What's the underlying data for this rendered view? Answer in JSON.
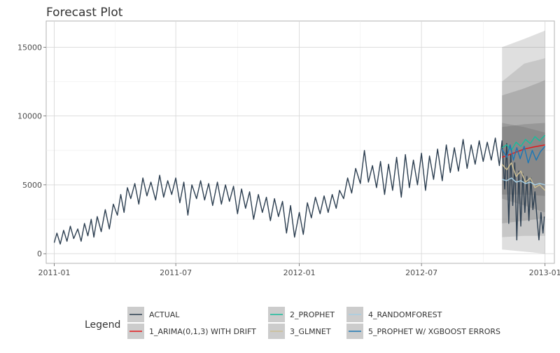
{
  "chart_data": {
    "type": "line",
    "title": "Forecast Plot",
    "xlabel": "",
    "ylabel": "",
    "x_range": [
      "2010-12-20",
      "2013-01-15"
    ],
    "ylim": [
      -700,
      16900
    ],
    "x_ticks": [
      {
        "date": "2011-01-01",
        "label": "2011-01"
      },
      {
        "date": "2011-07-01",
        "label": "2011-07"
      },
      {
        "date": "2012-01-01",
        "label": "2012-01"
      },
      {
        "date": "2012-07-01",
        "label": "2012-07"
      },
      {
        "date": "2013-01-01",
        "label": "2013-01"
      }
    ],
    "y_ticks": [
      0,
      5000,
      10000,
      15000
    ],
    "grid": true,
    "legend": {
      "title": "Legend",
      "position": "bottom",
      "entries": [
        {
          "label": "ACTUAL",
          "color": "#2c3e50"
        },
        {
          "label": "1_ARIMA(0,1,3) WITH DRIFT",
          "color": "#e31a1c"
        },
        {
          "label": "2_PROPHET",
          "color": "#18bc9c"
        },
        {
          "label": "3_GLMNET",
          "color": "#ccbe93"
        },
        {
          "label": "4_RANDOMFOREST",
          "color": "#a6cee3"
        },
        {
          "label": "5_PROPHET W/ XGBOOST ERRORS",
          "color": "#1f78b4"
        }
      ]
    },
    "colors": {
      "actual": "#2c3e50",
      "arima": "#e31a1c",
      "prophet": "#18bc9c",
      "glmnet": "#ccbe93",
      "randomforest": "#a6cee3",
      "xgb": "#1f78b4",
      "interval": "#4d4d4d"
    },
    "actual_series": {
      "name": "ACTUAL",
      "points": [
        [
          "2011-01-01",
          800
        ],
        [
          "2011-01-05",
          1500
        ],
        [
          "2011-01-10",
          700
        ],
        [
          "2011-01-15",
          1700
        ],
        [
          "2011-01-20",
          900
        ],
        [
          "2011-01-25",
          2000
        ],
        [
          "2011-01-30",
          1100
        ],
        [
          "2011-02-05",
          1800
        ],
        [
          "2011-02-10",
          900
        ],
        [
          "2011-02-15",
          2200
        ],
        [
          "2011-02-20",
          1300
        ],
        [
          "2011-02-25",
          2500
        ],
        [
          "2011-03-01",
          1200
        ],
        [
          "2011-03-06",
          2700
        ],
        [
          "2011-03-12",
          1600
        ],
        [
          "2011-03-18",
          3200
        ],
        [
          "2011-03-24",
          1800
        ],
        [
          "2011-03-30",
          3600
        ],
        [
          "2011-04-05",
          2800
        ],
        [
          "2011-04-10",
          4300
        ],
        [
          "2011-04-15",
          3000
        ],
        [
          "2011-04-20",
          4800
        ],
        [
          "2011-04-25",
          4000
        ],
        [
          "2011-05-01",
          5100
        ],
        [
          "2011-05-07",
          3600
        ],
        [
          "2011-05-13",
          5500
        ],
        [
          "2011-05-19",
          4200
        ],
        [
          "2011-05-25",
          5200
        ],
        [
          "2011-06-01",
          3900
        ],
        [
          "2011-06-07",
          5700
        ],
        [
          "2011-06-13",
          4100
        ],
        [
          "2011-06-19",
          5300
        ],
        [
          "2011-06-25",
          4300
        ],
        [
          "2011-07-01",
          5500
        ],
        [
          "2011-07-07",
          3700
        ],
        [
          "2011-07-13",
          5200
        ],
        [
          "2011-07-19",
          2800
        ],
        [
          "2011-07-25",
          5000
        ],
        [
          "2011-08-01",
          4000
        ],
        [
          "2011-08-07",
          5300
        ],
        [
          "2011-08-13",
          3900
        ],
        [
          "2011-08-19",
          5100
        ],
        [
          "2011-08-25",
          3500
        ],
        [
          "2011-09-01",
          5200
        ],
        [
          "2011-09-07",
          3600
        ],
        [
          "2011-09-13",
          5000
        ],
        [
          "2011-09-19",
          3800
        ],
        [
          "2011-09-25",
          4900
        ],
        [
          "2011-10-01",
          2900
        ],
        [
          "2011-10-07",
          4700
        ],
        [
          "2011-10-13",
          3300
        ],
        [
          "2011-10-19",
          4500
        ],
        [
          "2011-10-25",
          2500
        ],
        [
          "2011-11-01",
          4300
        ],
        [
          "2011-11-07",
          3000
        ],
        [
          "2011-11-13",
          4100
        ],
        [
          "2011-11-19",
          2400
        ],
        [
          "2011-11-25",
          4000
        ],
        [
          "2011-12-01",
          2700
        ],
        [
          "2011-12-07",
          3800
        ],
        [
          "2011-12-13",
          1500
        ],
        [
          "2011-12-19",
          3500
        ],
        [
          "2011-12-25",
          1200
        ],
        [
          "2012-01-01",
          3000
        ],
        [
          "2012-01-07",
          1400
        ],
        [
          "2012-01-13",
          3700
        ],
        [
          "2012-01-19",
          2600
        ],
        [
          "2012-01-25",
          4100
        ],
        [
          "2012-02-01",
          2900
        ],
        [
          "2012-02-07",
          4200
        ],
        [
          "2012-02-13",
          3000
        ],
        [
          "2012-02-19",
          4300
        ],
        [
          "2012-02-25",
          3300
        ],
        [
          "2012-03-01",
          4600
        ],
        [
          "2012-03-07",
          4000
        ],
        [
          "2012-03-13",
          5500
        ],
        [
          "2012-03-19",
          4400
        ],
        [
          "2012-03-25",
          6200
        ],
        [
          "2012-04-01",
          5100
        ],
        [
          "2012-04-07",
          7500
        ],
        [
          "2012-04-13",
          5200
        ],
        [
          "2012-04-19",
          6400
        ],
        [
          "2012-04-25",
          4800
        ],
        [
          "2012-05-01",
          6700
        ],
        [
          "2012-05-07",
          4300
        ],
        [
          "2012-05-13",
          6500
        ],
        [
          "2012-05-19",
          4600
        ],
        [
          "2012-05-25",
          7000
        ],
        [
          "2012-06-01",
          4100
        ],
        [
          "2012-06-07",
          7200
        ],
        [
          "2012-06-13",
          4800
        ],
        [
          "2012-06-19",
          6800
        ],
        [
          "2012-06-25",
          5000
        ],
        [
          "2012-07-01",
          7300
        ],
        [
          "2012-07-07",
          4600
        ],
        [
          "2012-07-13",
          7100
        ],
        [
          "2012-07-19",
          5400
        ],
        [
          "2012-07-25",
          7600
        ],
        [
          "2012-08-01",
          5300
        ],
        [
          "2012-08-07",
          7900
        ],
        [
          "2012-08-13",
          5900
        ],
        [
          "2012-08-19",
          7700
        ],
        [
          "2012-08-25",
          6000
        ],
        [
          "2012-09-01",
          8300
        ],
        [
          "2012-09-07",
          6200
        ],
        [
          "2012-09-13",
          7900
        ],
        [
          "2012-09-19",
          6500
        ],
        [
          "2012-09-25",
          8200
        ],
        [
          "2012-10-01",
          6700
        ],
        [
          "2012-10-07",
          8100
        ],
        [
          "2012-10-13",
          6800
        ],
        [
          "2012-10-19",
          8400
        ],
        [
          "2012-10-25",
          6400
        ],
        [
          "2012-10-29",
          8200
        ],
        [
          "2012-11-02",
          4700
        ],
        [
          "2012-11-05",
          8000
        ],
        [
          "2012-11-08",
          2200
        ],
        [
          "2012-11-11",
          7200
        ],
        [
          "2012-11-14",
          3500
        ],
        [
          "2012-11-17",
          6600
        ],
        [
          "2012-11-20",
          1000
        ],
        [
          "2012-11-23",
          6000
        ],
        [
          "2012-11-26",
          2000
        ],
        [
          "2012-11-29",
          5800
        ],
        [
          "2012-12-02",
          3000
        ],
        [
          "2012-12-05",
          5600
        ],
        [
          "2012-12-08",
          2400
        ],
        [
          "2012-12-11",
          5500
        ],
        [
          "2012-12-14",
          3200
        ],
        [
          "2012-12-17",
          4500
        ],
        [
          "2012-12-20",
          2600
        ],
        [
          "2012-12-23",
          1000
        ],
        [
          "2012-12-26",
          3000
        ],
        [
          "2012-12-29",
          1500
        ],
        [
          "2012-12-31",
          2700
        ]
      ]
    },
    "forecast_start": "2012-10-29",
    "forecast_end": "2013-01-01",
    "forecast_series": [
      {
        "name": "1_ARIMA(0,1,3) WITH DRIFT",
        "color": "#e31a1c",
        "points": [
          [
            "2012-10-29",
            7000
          ],
          [
            "2012-11-15",
            7300
          ],
          [
            "2012-12-01",
            7600
          ],
          [
            "2012-12-15",
            7750
          ],
          [
            "2013-01-01",
            7900
          ]
        ]
      },
      {
        "name": "2_PROPHET",
        "color": "#18bc9c",
        "points": [
          [
            "2012-10-29",
            7700
          ],
          [
            "2012-11-05",
            7900
          ],
          [
            "2012-11-12",
            7500
          ],
          [
            "2012-11-19",
            8100
          ],
          [
            "2012-11-26",
            7800
          ],
          [
            "2012-12-03",
            8300
          ],
          [
            "2012-12-10",
            8000
          ],
          [
            "2012-12-17",
            8500
          ],
          [
            "2012-12-24",
            8200
          ],
          [
            "2013-01-01",
            8600
          ]
        ]
      },
      {
        "name": "3_GLMNET",
        "color": "#ccbe93",
        "points": [
          [
            "2012-10-29",
            6500
          ],
          [
            "2012-11-05",
            6100
          ],
          [
            "2012-11-12",
            6600
          ],
          [
            "2012-11-19",
            5600
          ],
          [
            "2012-11-26",
            6000
          ],
          [
            "2012-12-03",
            5200
          ],
          [
            "2012-12-10",
            5500
          ],
          [
            "2012-12-17",
            4800
          ],
          [
            "2012-12-24",
            5000
          ],
          [
            "2013-01-01",
            4600
          ]
        ]
      },
      {
        "name": "4_RANDOMFOREST",
        "color": "#a6cee3",
        "points": [
          [
            "2012-10-29",
            5400
          ],
          [
            "2012-11-05",
            5300
          ],
          [
            "2012-11-12",
            5500
          ],
          [
            "2012-11-19",
            5200
          ],
          [
            "2012-11-26",
            5300
          ],
          [
            "2012-12-03",
            5100
          ],
          [
            "2012-12-10",
            5200
          ],
          [
            "2012-12-17",
            5000
          ],
          [
            "2012-12-24",
            5100
          ],
          [
            "2013-01-01",
            5000
          ]
        ]
      },
      {
        "name": "5_PROPHET W/ XGBOOST ERRORS",
        "color": "#1f78b4",
        "points": [
          [
            "2012-10-29",
            7600
          ],
          [
            "2012-11-05",
            7000
          ],
          [
            "2012-11-10",
            7900
          ],
          [
            "2012-11-15",
            6800
          ],
          [
            "2012-11-20",
            7700
          ],
          [
            "2012-11-25",
            6900
          ],
          [
            "2012-12-01",
            7800
          ],
          [
            "2012-12-07",
            6600
          ],
          [
            "2012-12-13",
            7500
          ],
          [
            "2012-12-19",
            6800
          ],
          [
            "2012-12-25",
            7400
          ],
          [
            "2013-01-01",
            7800
          ]
        ]
      }
    ],
    "intervals": [
      {
        "name": "1_ARIMA(0,1,3) WITH DRIFT",
        "opacity": 0.18,
        "lower": [
          [
            "2012-10-29",
            300
          ],
          [
            "2012-12-01",
            150
          ],
          [
            "2013-01-01",
            0
          ]
        ],
        "upper": [
          [
            "2012-10-29",
            15000
          ],
          [
            "2012-12-01",
            15600
          ],
          [
            "2013-01-01",
            16200
          ]
        ]
      },
      {
        "name": "5_PROPHET W/ XGBOOST ERRORS",
        "opacity": 0.16,
        "lower": [
          [
            "2012-10-29",
            1200
          ],
          [
            "2012-12-01",
            1300
          ],
          [
            "2013-01-01",
            1300
          ]
        ],
        "upper": [
          [
            "2012-10-29",
            12500
          ],
          [
            "2012-12-01",
            13800
          ],
          [
            "2013-01-01",
            14200
          ]
        ]
      },
      {
        "name": "2_PROPHET",
        "opacity": 0.2,
        "lower": [
          [
            "2012-10-29",
            2200
          ],
          [
            "2012-12-01",
            2400
          ],
          [
            "2013-01-01",
            2600
          ]
        ],
        "upper": [
          [
            "2012-10-29",
            11500
          ],
          [
            "2012-12-01",
            12000
          ],
          [
            "2013-01-01",
            12600
          ]
        ]
      },
      {
        "name": "3_GLMNET",
        "opacity": 0.2,
        "lower": [
          [
            "2012-10-29",
            4000
          ],
          [
            "2012-12-01",
            3500
          ],
          [
            "2013-01-01",
            3000
          ]
        ],
        "upper": [
          [
            "2012-10-29",
            9500
          ],
          [
            "2012-12-01",
            9200
          ],
          [
            "2013-01-01",
            8800
          ]
        ]
      },
      {
        "name": "4_RANDOMFOREST",
        "opacity": 0.22,
        "lower": [
          [
            "2012-10-29",
            4300
          ],
          [
            "2012-12-01",
            4300
          ],
          [
            "2013-01-01",
            4200
          ]
        ],
        "upper": [
          [
            "2012-10-29",
            9200
          ],
          [
            "2012-12-01",
            9400
          ],
          [
            "2013-01-01",
            9500
          ]
        ]
      }
    ]
  }
}
